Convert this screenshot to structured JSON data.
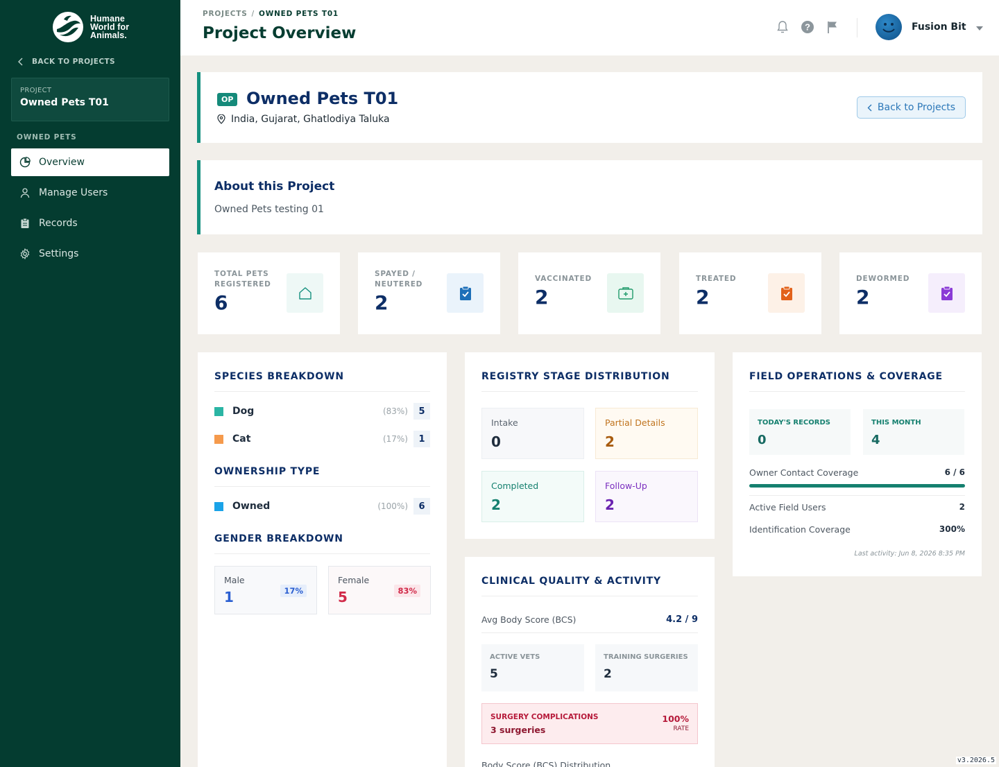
{
  "sidebar": {
    "logo_lines": [
      "Humane",
      "World for",
      "Animals."
    ],
    "back_label": "BACK TO PROJECTS",
    "project_label": "PROJECT",
    "project_name": "Owned Pets T01",
    "section_label": "OWNED PETS",
    "nav": [
      {
        "label": "Overview",
        "icon": "pie-chart-icon",
        "active": true
      },
      {
        "label": "Manage Users",
        "icon": "user-icon"
      },
      {
        "label": "Records",
        "icon": "clipboard-icon"
      },
      {
        "label": "Settings",
        "icon": "gear-icon"
      }
    ]
  },
  "header": {
    "breadcrumb": [
      "PROJECTS",
      "OWNED PETS T01"
    ],
    "breadcrumb_sep": "/",
    "title": "Project Overview",
    "icons": [
      "bell-icon",
      "help-icon",
      "flag-icon"
    ],
    "user_name": "Fusion Bit"
  },
  "hero": {
    "badge": "OP",
    "title": "Owned Pets T01",
    "location": "India, Gujarat, Ghatlodiya Taluka",
    "back_button": "Back to Projects"
  },
  "about": {
    "title": "About this Project",
    "description": "Owned Pets testing 01"
  },
  "stats": [
    {
      "label": "TOTAL PETS REGISTERED",
      "value": "6",
      "icon": "home-icon",
      "color": "#15907f",
      "bg": "#eef8f6"
    },
    {
      "label": "SPAYED / NEUTERED",
      "value": "2",
      "icon": "clipboard-check-icon",
      "color": "#1d6fb8",
      "bg": "#eaf3fb"
    },
    {
      "label": "VACCINATED",
      "value": "2",
      "icon": "medical-kit-icon",
      "color": "#1f9a6a",
      "bg": "#e8f7f0"
    },
    {
      "label": "TREATED",
      "value": "2",
      "icon": "clipboard-check-icon",
      "color": "#e2621b",
      "bg": "#fdf1e7"
    },
    {
      "label": "DEWORMED",
      "value": "2",
      "icon": "clipboard-check-icon",
      "color": "#8a3bd6",
      "bg": "#f5eefc"
    }
  ],
  "species": {
    "title": "SPECIES BREAKDOWN",
    "items": [
      {
        "name": "Dog",
        "pct": "(83%)",
        "count": "5",
        "color": "#2bb5a4"
      },
      {
        "name": "Cat",
        "pct": "(17%)",
        "count": "1",
        "color": "#f59a4c"
      }
    ],
    "ownership_title": "OWNERSHIP TYPE",
    "ownership": [
      {
        "name": "Owned",
        "pct": "(100%)",
        "count": "6",
        "color": "#1aa3e8"
      }
    ],
    "gender_title": "GENDER BREAKDOWN",
    "gender": [
      {
        "label": "Male",
        "value": "1",
        "pct": "17%",
        "color": "#2b5fd1",
        "pill_bg": "#e6eefb"
      },
      {
        "label": "Female",
        "value": "5",
        "pct": "83%",
        "color": "#d12b4a",
        "pill_bg": "#fbe6ea"
      }
    ]
  },
  "registry": {
    "title": "REGISTRY STAGE DISTRIBUTION",
    "stages": [
      {
        "label": "Intake",
        "value": "0",
        "label_color": "#5b6570",
        "value_color": "#1f2d3d",
        "bg": "#f7f8fa",
        "border": "#eceff3"
      },
      {
        "label": "Partial Details",
        "value": "2",
        "label_color": "#c0741f",
        "value_color": "#a85c10",
        "bg": "#fffaf2",
        "border": "#f7ead4"
      },
      {
        "label": "Completed",
        "value": "2",
        "label_color": "#15806f",
        "value_color": "#15806f",
        "bg": "#f3fbf9",
        "border": "#d9efe9"
      },
      {
        "label": "Follow-Up",
        "value": "2",
        "label_color": "#7a2dbf",
        "value_color": "#6a22b0",
        "bg": "#faf7fd",
        "border": "#ece3f6"
      }
    ]
  },
  "clinical": {
    "title": "CLINICAL QUALITY & ACTIVITY",
    "bcs_label": "Avg Body Score (BCS)",
    "bcs_value": "4.2 / 9",
    "active_vets_label": "ACTIVE VETS",
    "active_vets_value": "5",
    "training_label": "TRAINING SURGERIES",
    "training_value": "2",
    "complications_label": "SURGERY COMPLICATIONS",
    "complications_count": "3 surgeries",
    "complications_rate": "100%",
    "complications_rate_label": "RATE",
    "bcs_dist_label": "Body Score (BCS) Distribution"
  },
  "field": {
    "title": "FIELD OPERATIONS & COVERAGE",
    "today_label": "TODAY'S RECORDS",
    "today_value": "0",
    "month_label": "THIS MONTH",
    "month_value": "4",
    "contact_label": "Owner Contact Coverage",
    "contact_value": "6 / 6",
    "contact_progress": 1.0,
    "users_label": "Active Field Users",
    "users_value": "2",
    "ident_label": "Identification Coverage",
    "ident_value": "300%",
    "last_activity": "Last activity: Jun 8, 2026 8:35 PM"
  },
  "version": "v3.2026.5"
}
